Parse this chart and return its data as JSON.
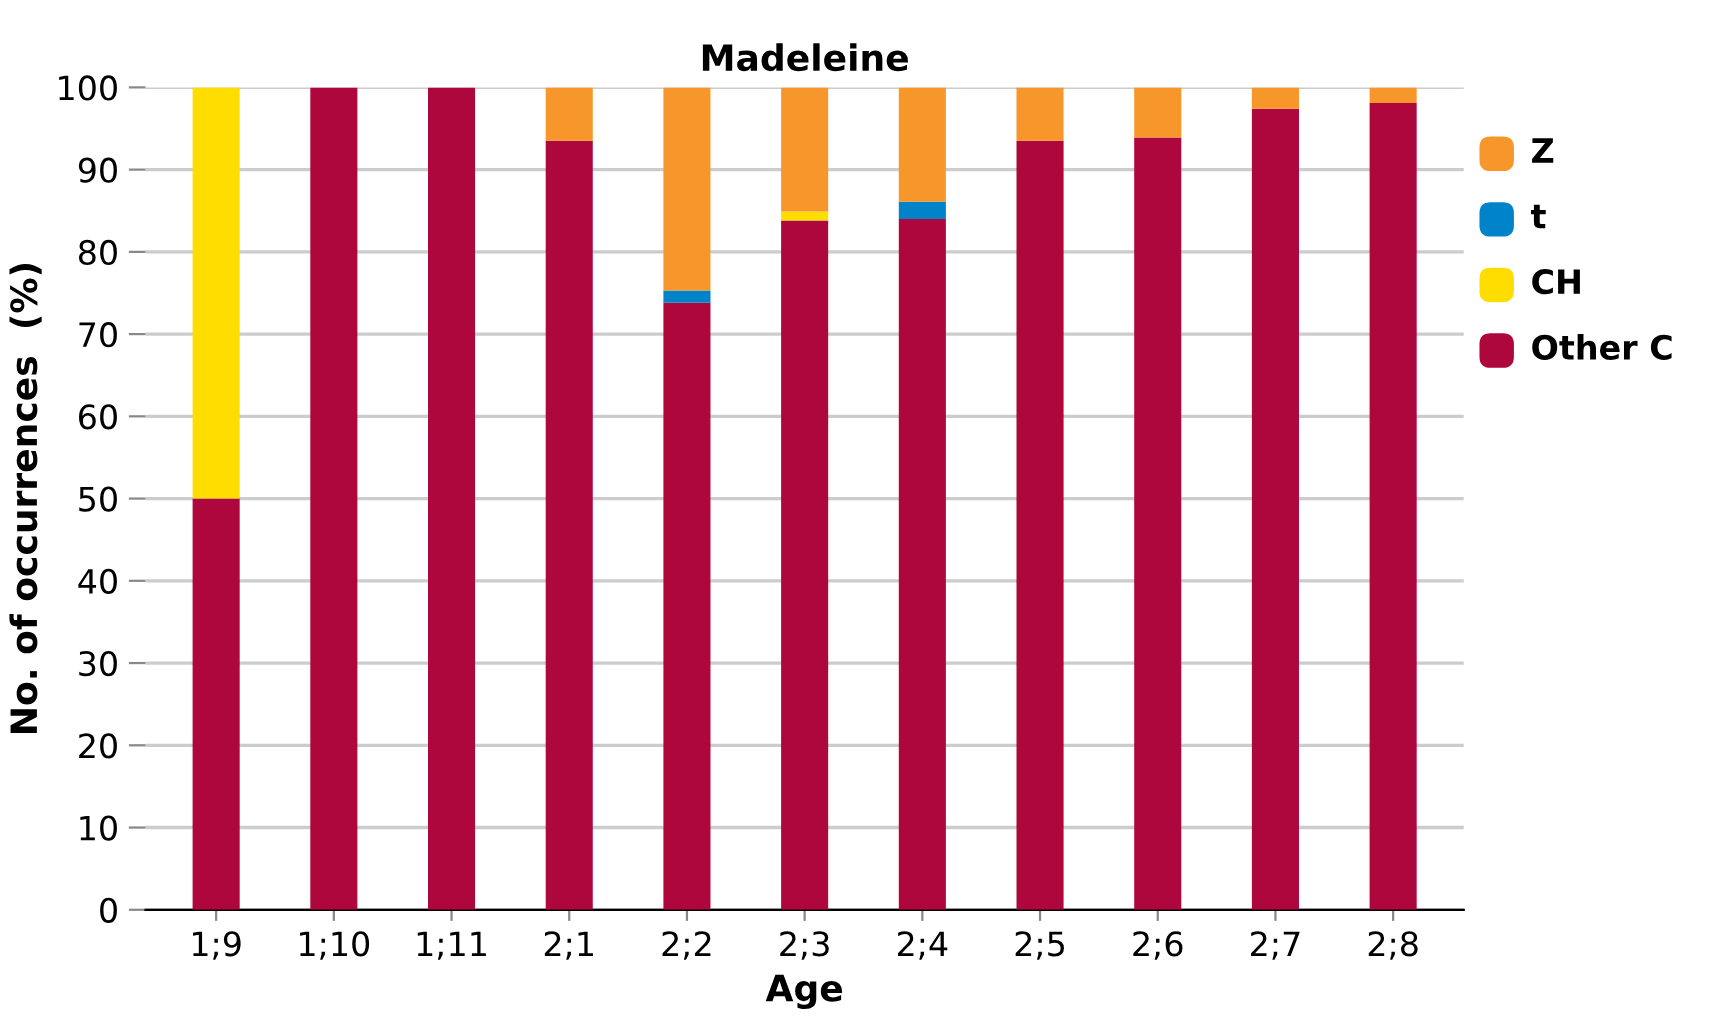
{
  "chart_data": {
    "type": "bar",
    "title": "Madeleine",
    "xlabel": "Age",
    "ylabel": "No. of occurrences  (%)",
    "stacked": true,
    "categories": [
      "1;9",
      "1;10",
      "1;11",
      "2;1",
      "2;2",
      "2;3",
      "2;4",
      "2;5",
      "2;6",
      "2;7",
      "2;8"
    ],
    "series": [
      {
        "name": "Other C",
        "color": "#ae073d",
        "values": [
          50,
          100,
          100,
          93.5,
          73.8,
          83.8,
          84.0,
          93.5,
          93.9,
          97.4,
          98.1
        ]
      },
      {
        "name": "CH",
        "color": "#ffdd00",
        "values": [
          50,
          0,
          0,
          0,
          0,
          1.1,
          0,
          0,
          0,
          0,
          0
        ]
      },
      {
        "name": "t",
        "color": "#0083c9",
        "values": [
          0,
          0,
          0,
          0,
          1.5,
          0,
          2.1,
          0,
          0,
          0,
          0
        ]
      },
      {
        "name": "Z",
        "color": "#f7972b",
        "values": [
          0,
          0,
          0,
          6.5,
          24.7,
          15.1,
          13.9,
          6.5,
          6.1,
          2.6,
          1.9
        ]
      }
    ],
    "ylim": [
      0,
      100
    ],
    "yticks": [
      0,
      10,
      20,
      30,
      40,
      50,
      60,
      70,
      80,
      90,
      100
    ],
    "grid": "y",
    "legend": "right"
  }
}
